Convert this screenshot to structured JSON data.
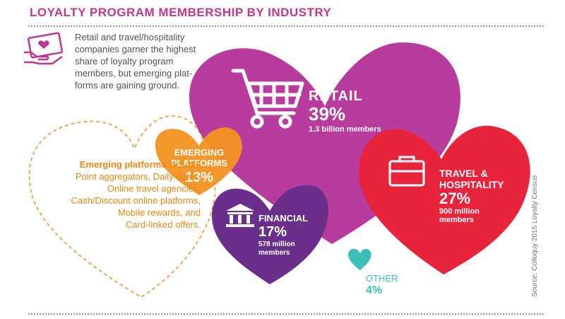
{
  "title": "LOYALTY PROGRAM MEMBERSHIP BY INDUSTRY",
  "intro": "Retail and travel/hospitality companies garner the highest share of loyalty program members, but emerging plat- forms are gaining ground.",
  "emerging_note": {
    "lead": "Emerging platforms",
    "lead_suffix": " include:",
    "lines": [
      "Point aggregators, Daily deals,",
      "Online travel agencies,",
      "Cash/Discount online platforms,",
      "Mobile rewards, and",
      "Card-linked offers."
    ]
  },
  "source": "Source: Colloquy 2015 Loyalty Census",
  "colors": {
    "title": "#c2378e",
    "retail": "#b83b9e",
    "travel": "#e8243c",
    "emerging": "#f39220",
    "financial": "#6a2f8a",
    "other": "#3dbfb8",
    "dashed": "#f0a04b"
  },
  "icons": {
    "hand": "hand-heart-card-icon",
    "retail": "shopping-cart-icon",
    "travel": "briefcase-icon",
    "financial": "bank-building-icon"
  },
  "chart_data": {
    "type": "pie",
    "title": "LOYALTY PROGRAM MEMBERSHIP BY INDUSTRY",
    "categories": [
      "RETAIL",
      "TRAVEL & HOSPITALITY",
      "FINANCIAL",
      "EMERGING PLATFORMS",
      "OTHER"
    ],
    "values": [
      39,
      27,
      17,
      13,
      4
    ],
    "value_labels": [
      "39%",
      "27%",
      "17%",
      "13%",
      "4%"
    ],
    "members": [
      "1.3 billion members",
      "900 million members",
      "578 million members",
      "",
      ""
    ]
  }
}
